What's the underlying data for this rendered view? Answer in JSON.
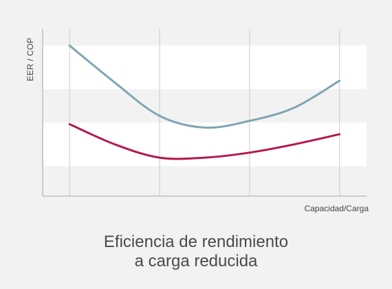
{
  "chart_data": {
    "type": "line",
    "xlabel": "Capacidad/Carga",
    "ylabel": "EER / COP",
    "x": [
      0,
      1,
      2,
      3
    ],
    "xlim": [
      -0.3,
      3.3
    ],
    "ylim": [
      0,
      10
    ],
    "axis_ticks_shown": false,
    "grid": "vertical lines at each x position; alternating white horizontal bands",
    "bands": [
      [
        1.8,
        4.4
      ],
      [
        6.4,
        9.0
      ]
    ],
    "series": [
      {
        "color": "#7fa4b3",
        "x": [
          0,
          0.5,
          1,
          1.5,
          2,
          2.5,
          3
        ],
        "values": [
          9.0,
          6.8,
          4.8,
          4.1,
          4.5,
          5.3,
          6.9
        ]
      },
      {
        "color": "#b5174e",
        "x": [
          0,
          0.5,
          1,
          1.5,
          2,
          2.5,
          3
        ],
        "values": [
          4.3,
          3.1,
          2.3,
          2.3,
          2.6,
          3.1,
          3.7
        ]
      }
    ]
  },
  "caption": {
    "line1": "Eficiencia de rendimiento",
    "line2": "a carga reducida"
  },
  "colors": {
    "background": "#f2f2f2",
    "band": "#ffffff",
    "axis": "#bdbdbd",
    "gridline": "#c9c9c9",
    "text": "#4a4a4a"
  }
}
